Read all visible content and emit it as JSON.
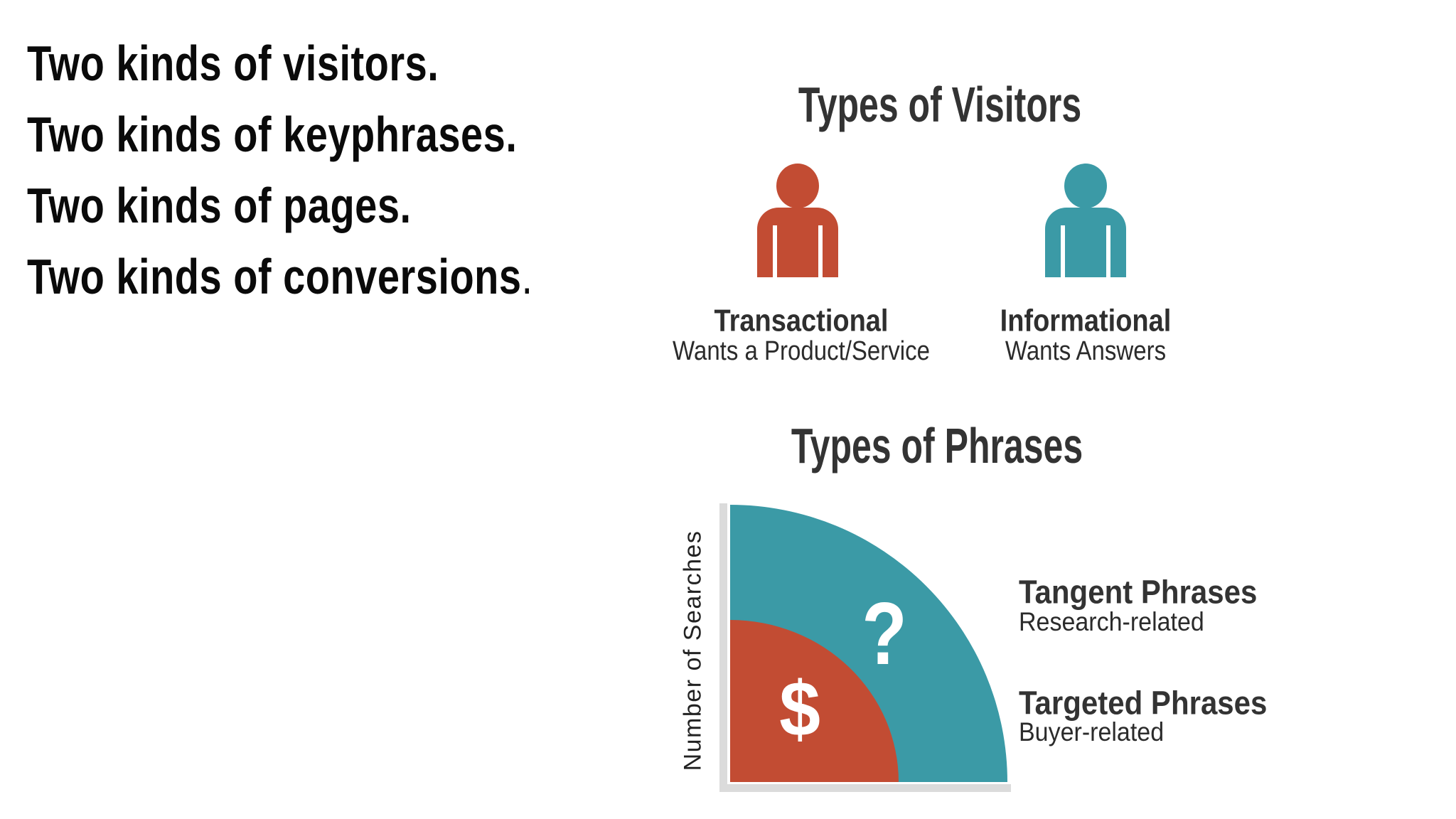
{
  "slide": {
    "background": "#ffffff",
    "intro": {
      "lines": [
        {
          "text": "Two kinds of visitors."
        },
        {
          "text": "Two kinds of keyphrases."
        },
        {
          "text": "Two kinds of pages."
        },
        {
          "text": "Two kinds of conversions",
          "suffix": "."
        }
      ]
    },
    "visitors": {
      "title": "Types of Visitors",
      "columns": [
        {
          "icon": "person-icon",
          "color": "#C24C33",
          "label": "Transactional",
          "subtitle": "Wants a Product/Service"
        },
        {
          "icon": "person-icon",
          "color": "#3B9AA6",
          "label": "Informational",
          "subtitle": "Wants Answers"
        }
      ]
    },
    "phrases": {
      "title": "Types of Phrases",
      "y_axis_label": "Number of Searches",
      "rings": [
        {
          "symbol": "?",
          "color": "#3B9AA6",
          "size": "large",
          "label": "Tangent Phrases",
          "sublabel": "Research-related"
        },
        {
          "symbol": "$",
          "color": "#C24C33",
          "size": "small",
          "label": "Targeted Phrases",
          "sublabel": "Buyer-related"
        }
      ]
    }
  }
}
